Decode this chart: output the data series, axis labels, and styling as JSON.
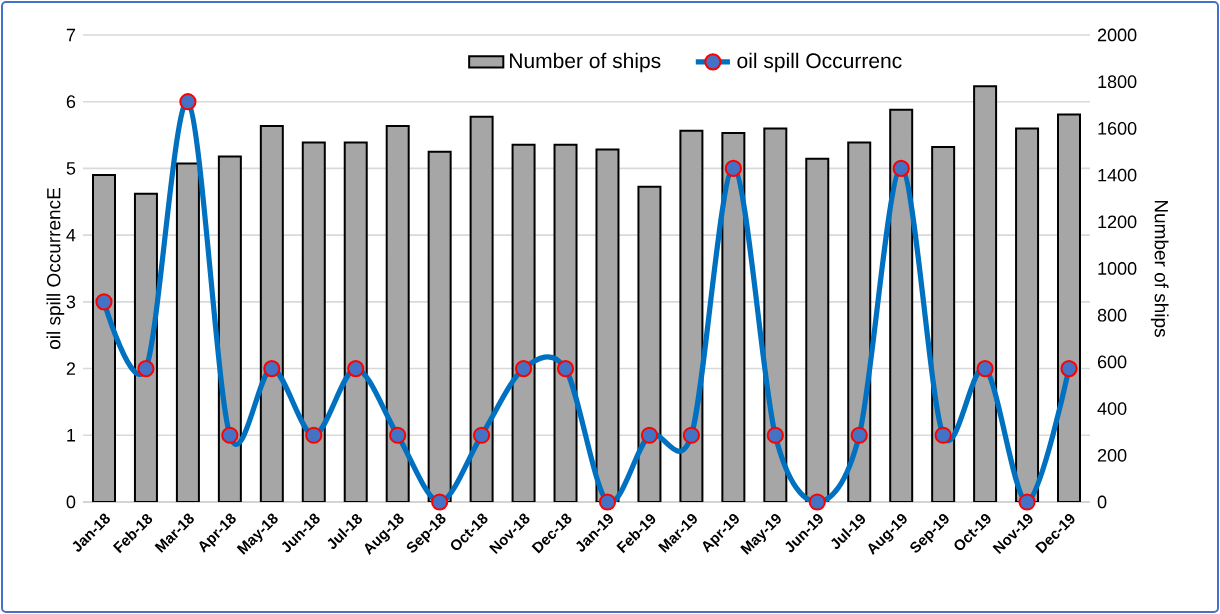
{
  "chart_data": {
    "type": "bar",
    "ylabel": "oil spill OccurrencE",
    "y2label": "Number of ships",
    "categories": [
      "Jan-18",
      "Feb-18",
      "Mar-18",
      "Apr-18",
      "May-18",
      "Jun-18",
      "Jul-18",
      "Aug-18",
      "Sep-18",
      "Oct-18",
      "Nov-18",
      "Dec-18",
      "Jan-19",
      "Feb-19",
      "Mar-19",
      "Apr-19",
      "May-19",
      "Jun-19",
      "Jul-19",
      "Aug-19",
      "Sep-19",
      "Oct-19",
      "Nov-19",
      "Dec-19"
    ],
    "series": [
      {
        "name": "Number of ships",
        "axis": "y2",
        "color": "#a6a6a6",
        "values": [
          1400,
          1320,
          1450,
          1480,
          1610,
          1540,
          1540,
          1610,
          1500,
          1650,
          1530,
          1530,
          1510,
          1350,
          1590,
          1580,
          1600,
          1470,
          1540,
          1680,
          1520,
          1780,
          1600,
          1660
        ]
      },
      {
        "name": "oil spill Occurrenc",
        "type": "line",
        "color": "#0070c0",
        "values": [
          3,
          2,
          6,
          1,
          2,
          1,
          2,
          1,
          0,
          1,
          2,
          2,
          0,
          1,
          1,
          5,
          1,
          0,
          1,
          5,
          1,
          2,
          0,
          2
        ]
      }
    ],
    "ylim": [
      0,
      7
    ],
    "yticks": [
      0,
      1,
      2,
      3,
      4,
      5,
      6,
      7
    ],
    "y2lim": [
      0,
      2000
    ],
    "y2ticks": [
      0,
      200,
      400,
      600,
      800,
      1000,
      1200,
      1400,
      1600,
      1800,
      2000
    ],
    "grid": "y",
    "legend": "top",
    "marker": "circle",
    "line_style": "solid"
  }
}
